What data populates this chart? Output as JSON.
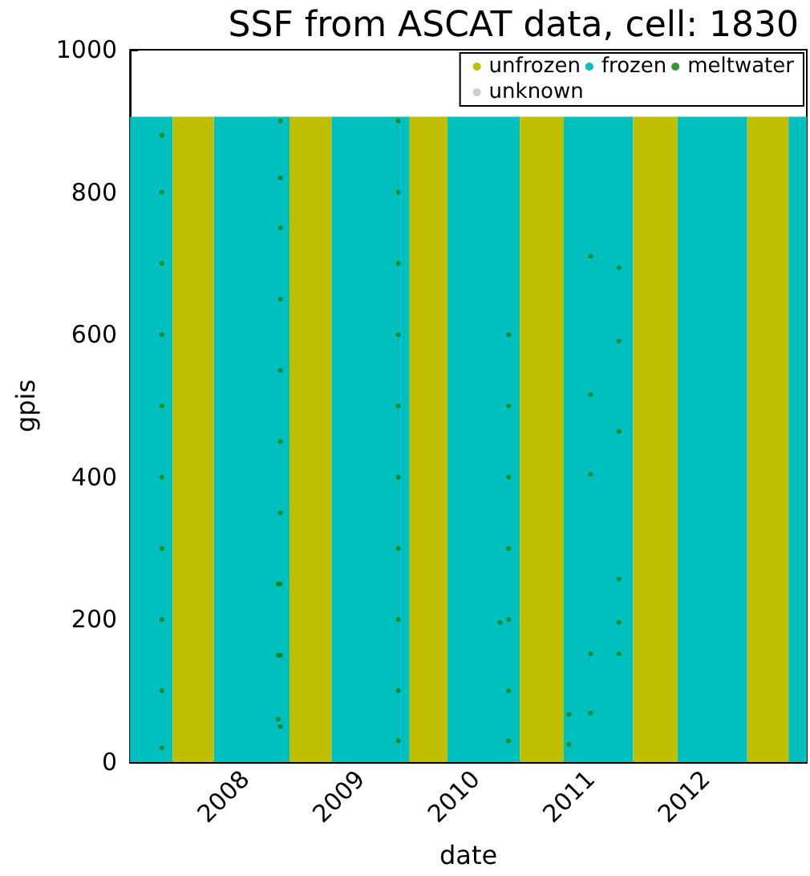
{
  "chart_data": {
    "type": "scatter",
    "title": "SSF from ASCAT data, cell: 1830",
    "xlabel": "date",
    "ylabel": "gpis",
    "xlim": [
      "2007-01-01",
      "2012-11-17"
    ],
    "ylim": [
      0,
      1000
    ],
    "xticks": [
      {
        "value": "2008-01-01",
        "label": "2008"
      },
      {
        "value": "2009-01-01",
        "label": "2009"
      },
      {
        "value": "2010-01-01",
        "label": "2010"
      },
      {
        "value": "2011-01-01",
        "label": "2011"
      },
      {
        "value": "2012-01-01",
        "label": "2012"
      }
    ],
    "yticks": [
      0,
      200,
      400,
      600,
      800,
      1000
    ],
    "legend": "top right",
    "grid": false,
    "marker": "circle",
    "series": [
      {
        "name": "unfrozen",
        "type": "area",
        "marker": "none",
        "color": "#bfbf00",
        "x": [
          "2007-05-16",
          "2007-05-16",
          "2007-09-24",
          "2007-09-24",
          "2008-05-21",
          "2008-05-21",
          "2008-10-01",
          "2008-10-01",
          "2009-06-06",
          "2009-06-06",
          "2009-10-04",
          "2009-10-04",
          "2010-05-22",
          "2010-05-22",
          "2010-10-08",
          "2010-10-08",
          "2011-05-16",
          "2011-05-16",
          "2011-10-04",
          "2011-10-04",
          "2012-05-12",
          "2012-05-12",
          "2012-09-20",
          "2012-09-20"
        ],
        "values": [
          0,
          906,
          906,
          0,
          0,
          906,
          906,
          0,
          0,
          906,
          906,
          0,
          0,
          906,
          906,
          0,
          0,
          906,
          906,
          0,
          0,
          906,
          906,
          0
        ]
      },
      {
        "name": "frozen",
        "type": "area",
        "marker": "none",
        "color": "#00bfbf",
        "x": [
          "2007-01-01",
          "2007-05-16",
          "2007-05-16",
          "2007-09-24",
          "2007-09-24",
          "2008-05-21",
          "2008-05-21",
          "2008-10-01",
          "2008-10-01",
          "2009-06-06",
          "2009-06-06",
          "2009-10-04",
          "2009-10-04",
          "2010-05-22",
          "2010-05-22",
          "2010-10-08",
          "2010-10-08",
          "2011-05-16",
          "2011-05-16",
          "2011-10-04",
          "2011-10-04",
          "2012-05-12",
          "2012-05-12",
          "2012-09-20",
          "2012-09-20",
          "2012-11-17"
        ],
        "values": [
          906,
          906,
          0,
          0,
          906,
          906,
          0,
          0,
          906,
          906,
          0,
          0,
          906,
          906,
          0,
          0,
          906,
          906,
          0,
          0,
          906,
          906,
          0,
          0,
          906,
          906
        ]
      },
      {
        "name": "meltwater",
        "color": "#007f00",
        "x": [
          "2007-04-12",
          "2007-04-12",
          "2007-04-12",
          "2007-04-12",
          "2007-04-12",
          "2007-04-12",
          "2007-04-12",
          "2007-04-12",
          "2007-04-12",
          "2007-04-12",
          "2008-04-22",
          "2008-04-22",
          "2008-04-22",
          "2008-04-22",
          "2008-04-22",
          "2008-04-22",
          "2008-04-22",
          "2008-04-22",
          "2008-04-22",
          "2008-04-22",
          "2008-04-15",
          "2008-04-15",
          "2008-04-15",
          "2009-05-01",
          "2009-05-01",
          "2009-05-01",
          "2009-05-01",
          "2009-05-01",
          "2009-05-01",
          "2009-05-01",
          "2009-05-01",
          "2009-05-01",
          "2009-05-01",
          "2010-04-16",
          "2010-04-16",
          "2010-04-16",
          "2010-04-16",
          "2010-04-16",
          "2010-04-16",
          "2010-04-16",
          "2010-03-20",
          "2010-10-25",
          "2010-10-25",
          "2011-01-01",
          "2011-01-01",
          "2011-01-01",
          "2011-01-01",
          "2011-01-01",
          "2011-04-01",
          "2011-04-01",
          "2011-04-01",
          "2011-04-01",
          "2011-04-01",
          "2011-04-01"
        ],
        "values": [
          880,
          800,
          700,
          600,
          500,
          400,
          300,
          200,
          100,
          20,
          900,
          820,
          750,
          650,
          550,
          450,
          350,
          250,
          150,
          50,
          250,
          150,
          60,
          900,
          800,
          700,
          600,
          500,
          400,
          300,
          200,
          100,
          30,
          600,
          500,
          400,
          300,
          200,
          100,
          30,
          196,
          67,
          25,
          710,
          516,
          404,
          152,
          69,
          694,
          591,
          464,
          257,
          196,
          152
        ]
      },
      {
        "name": "unknown",
        "color": "#c0c0c0"
      }
    ]
  }
}
